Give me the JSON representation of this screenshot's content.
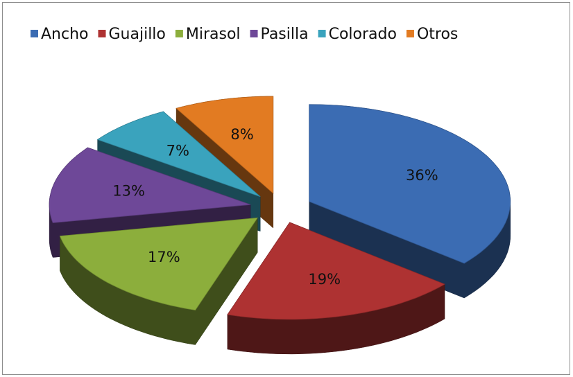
{
  "chart_data": {
    "type": "pie",
    "categories": [
      "Ancho",
      "Guajillo",
      "Mirasol",
      "Pasilla",
      "Colorado",
      "Otros"
    ],
    "values": [
      36,
      19,
      17,
      13,
      7,
      8
    ],
    "value_labels": [
      "36%",
      "19%",
      "17%",
      "13%",
      "7%",
      "8%"
    ],
    "colors": [
      "#3b6cb3",
      "#ae3232",
      "#8cae3c",
      "#6e4898",
      "#3aa3bd",
      "#e27b22"
    ],
    "legend": "top"
  }
}
